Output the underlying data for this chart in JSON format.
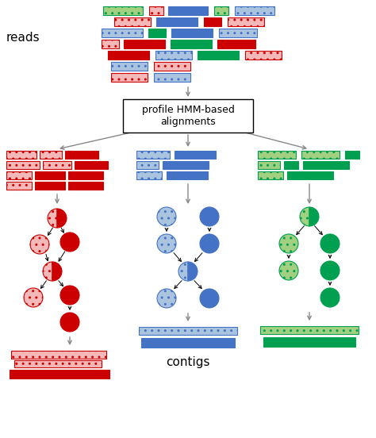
{
  "bg_color": "#ffffff",
  "red": "#cc0000",
  "red_light": "#f5b8b8",
  "blue": "#4472c4",
  "blue_light": "#aac4e0",
  "green": "#00a050",
  "green_light": "#a0d080",
  "gray_arrow": "#888888",
  "box_text": "profile HMM-based\nalignments",
  "reads_label": "reads",
  "contigs_label": "contigs"
}
